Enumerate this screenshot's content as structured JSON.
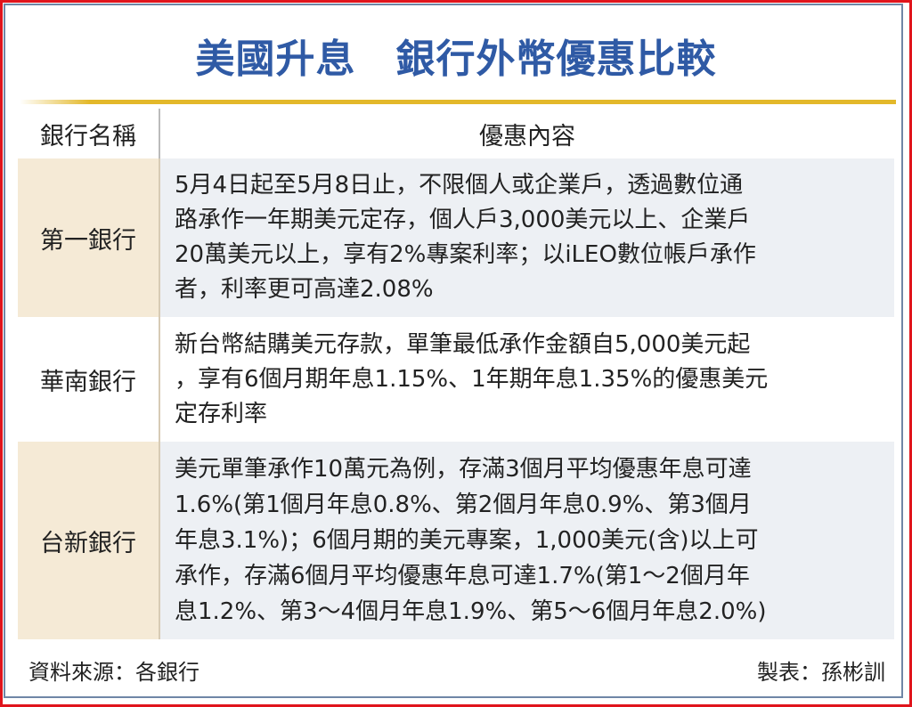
{
  "title": "美國升息　銀行外幣優惠比較",
  "table": {
    "headers": {
      "bank": "銀行名稱",
      "content": "優惠內容"
    },
    "rows": [
      {
        "bank": "第一銀行",
        "lines": [
          "5月4日起至5月8日止，不限個人或企業戶，透過數位通",
          "路承作一年期美元定存，個人戶3,000美元以上、企業戶",
          "20萬美元以上，享有2%專案利率；以iLEO數位帳戶承作",
          "者，利率更可高達2.08%"
        ]
      },
      {
        "bank": "華南銀行",
        "lines": [
          "新台幣結購美元存款，單筆最低承作金額自5,000美元起",
          "，享有6個月期年息1.15%、1年期年息1.35%的優惠美元",
          "定存利率"
        ]
      },
      {
        "bank": "台新銀行",
        "lines": [
          "美元單筆承作10萬元為例，存滿3個月平均優惠年息可達",
          "1.6%(第1個月年息0.8%、第2個月年息0.9%、第3個月",
          "年息3.1%)；6個月期的美元專案，1,000美元(含)以上可",
          "承作，存滿6個月平均優惠年息可達1.7%(第1～2個月年",
          "息1.2%、第3～4個月年息1.9%、第5～6個月年息2.0%)"
        ]
      }
    ]
  },
  "footer": {
    "source": "資料來源：各銀行",
    "credit": "製表：孫彬訓"
  },
  "colors": {
    "title": "#2f5aa5",
    "frame": "#e0141c",
    "gold_rule": "#e3b82a",
    "bank_cell": "#f5ead6",
    "content_cell": "#edf0f4"
  }
}
